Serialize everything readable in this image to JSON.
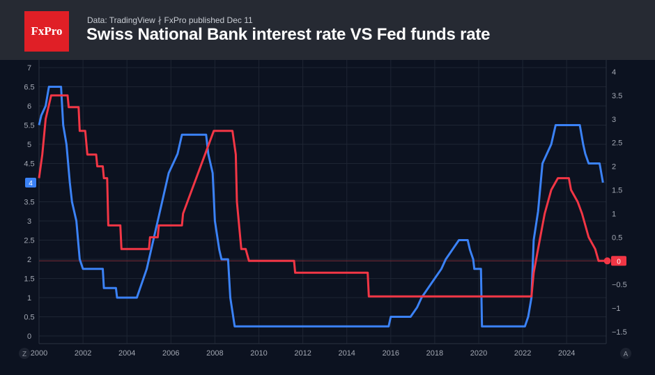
{
  "header": {
    "logo_text": "FxPro",
    "source_text": "Data: TradingView  ∤ FxPro published Dec 11",
    "title": "Swiss National Bank interest rate VS Fed funds rate"
  },
  "footer": {
    "left_btn": "Z",
    "right_btn": "A"
  },
  "colors": {
    "fed": "#3b82f6",
    "snb": "#f23645",
    "background": "#0c1220",
    "header": "#262a33",
    "grid": "#1e2533",
    "axis_text": "#a3a8b3"
  },
  "chart_data": {
    "type": "line",
    "title": "Swiss National Bank interest rate VS Fed funds rate",
    "x_ticks": [
      "2000",
      "2002",
      "2004",
      "2006",
      "2008",
      "2010",
      "2012",
      "2014",
      "2016",
      "2018",
      "2020",
      "2022",
      "2024"
    ],
    "xlim": [
      2000,
      2025.8
    ],
    "y_left": {
      "ticks": [
        "0",
        "0.5",
        "1",
        "1.5",
        "2",
        "2.5",
        "3",
        "3.5",
        "4",
        "4.5",
        "5",
        "5.5",
        "6",
        "6.5",
        "7"
      ],
      "ylim": [
        -0.2,
        7.2
      ],
      "last_value_label": "4"
    },
    "y_right": {
      "ticks": [
        "−1.5",
        "−1",
        "−0.5",
        "0",
        "0.5",
        "1",
        "1.5",
        "2",
        "2.5",
        "3",
        "3.5",
        "4"
      ],
      "ylim": [
        -1.75,
        4.25
      ],
      "last_value_label": "0"
    },
    "grid": true,
    "series": [
      {
        "axis": "left",
        "color": "#3b82f6",
        "points": [
          [
            2000.0,
            5.5
          ],
          [
            2000.1,
            5.75
          ],
          [
            2000.3,
            6.0
          ],
          [
            2000.45,
            6.5
          ],
          [
            2001.0,
            6.5
          ],
          [
            2001.1,
            5.5
          ],
          [
            2001.25,
            5.0
          ],
          [
            2001.4,
            4.0
          ],
          [
            2001.5,
            3.5
          ],
          [
            2001.7,
            3.0
          ],
          [
            2001.85,
            2.0
          ],
          [
            2002.0,
            1.75
          ],
          [
            2002.9,
            1.75
          ],
          [
            2002.95,
            1.25
          ],
          [
            2003.5,
            1.25
          ],
          [
            2003.55,
            1.0
          ],
          [
            2004.45,
            1.0
          ],
          [
            2004.6,
            1.25
          ],
          [
            2004.75,
            1.5
          ],
          [
            2004.9,
            1.75
          ],
          [
            2005.1,
            2.25
          ],
          [
            2005.3,
            2.75
          ],
          [
            2005.5,
            3.25
          ],
          [
            2005.7,
            3.75
          ],
          [
            2005.9,
            4.25
          ],
          [
            2006.1,
            4.5
          ],
          [
            2006.3,
            4.75
          ],
          [
            2006.5,
            5.25
          ],
          [
            2007.6,
            5.25
          ],
          [
            2007.7,
            4.75
          ],
          [
            2007.9,
            4.25
          ],
          [
            2008.0,
            3.0
          ],
          [
            2008.2,
            2.25
          ],
          [
            2008.3,
            2.0
          ],
          [
            2008.6,
            2.0
          ],
          [
            2008.7,
            1.0
          ],
          [
            2008.9,
            0.25
          ],
          [
            2015.9,
            0.25
          ],
          [
            2016.0,
            0.5
          ],
          [
            2016.9,
            0.5
          ],
          [
            2017.2,
            0.75
          ],
          [
            2017.4,
            1.0
          ],
          [
            2017.7,
            1.25
          ],
          [
            2018.0,
            1.5
          ],
          [
            2018.3,
            1.75
          ],
          [
            2018.5,
            2.0
          ],
          [
            2018.8,
            2.25
          ],
          [
            2019.1,
            2.5
          ],
          [
            2019.5,
            2.5
          ],
          [
            2019.6,
            2.25
          ],
          [
            2019.75,
            2.0
          ],
          [
            2019.8,
            1.75
          ],
          [
            2020.1,
            1.75
          ],
          [
            2020.15,
            0.25
          ],
          [
            2022.1,
            0.25
          ],
          [
            2022.25,
            0.5
          ],
          [
            2022.4,
            1.0
          ],
          [
            2022.5,
            2.5
          ],
          [
            2022.7,
            3.25
          ],
          [
            2022.9,
            4.5
          ],
          [
            2023.1,
            4.75
          ],
          [
            2023.3,
            5.0
          ],
          [
            2023.5,
            5.5
          ],
          [
            2024.6,
            5.5
          ],
          [
            2024.75,
            5.0
          ],
          [
            2024.85,
            4.75
          ],
          [
            2025.0,
            4.5
          ],
          [
            2025.5,
            4.5
          ],
          [
            2025.65,
            4.0
          ]
        ]
      },
      {
        "axis": "right",
        "color": "#f23645",
        "points": [
          [
            2000.0,
            1.75
          ],
          [
            2000.15,
            2.25
          ],
          [
            2000.3,
            3.0
          ],
          [
            2000.55,
            3.5
          ],
          [
            2001.3,
            3.5
          ],
          [
            2001.35,
            3.25
          ],
          [
            2001.8,
            3.25
          ],
          [
            2001.85,
            2.75
          ],
          [
            2002.1,
            2.75
          ],
          [
            2002.2,
            2.25
          ],
          [
            2002.6,
            2.25
          ],
          [
            2002.65,
            2.0
          ],
          [
            2002.9,
            2.0
          ],
          [
            2002.95,
            1.75
          ],
          [
            2003.1,
            1.75
          ],
          [
            2003.15,
            0.75
          ],
          [
            2003.7,
            0.75
          ],
          [
            2003.75,
            0.25
          ],
          [
            2005.0,
            0.25
          ],
          [
            2005.05,
            0.5
          ],
          [
            2005.4,
            0.5
          ],
          [
            2005.45,
            0.75
          ],
          [
            2006.5,
            0.75
          ],
          [
            2006.55,
            1.0
          ],
          [
            2006.75,
            1.25
          ],
          [
            2006.95,
            1.5
          ],
          [
            2007.15,
            1.75
          ],
          [
            2007.35,
            2.0
          ],
          [
            2007.55,
            2.25
          ],
          [
            2007.75,
            2.5
          ],
          [
            2007.95,
            2.75
          ],
          [
            2008.8,
            2.75
          ],
          [
            2008.95,
            2.25
          ],
          [
            2009.0,
            1.25
          ],
          [
            2009.2,
            0.25
          ],
          [
            2009.4,
            0.25
          ],
          [
            2009.55,
            0.0
          ],
          [
            2011.6,
            0.0
          ],
          [
            2011.65,
            -0.25
          ],
          [
            2014.95,
            -0.25
          ],
          [
            2015.0,
            -0.75
          ],
          [
            2022.4,
            -0.75
          ],
          [
            2022.5,
            -0.25
          ],
          [
            2022.7,
            0.25
          ],
          [
            2022.9,
            0.75
          ],
          [
            2023.0,
            1.0
          ],
          [
            2023.3,
            1.5
          ],
          [
            2023.6,
            1.75
          ],
          [
            2024.1,
            1.75
          ],
          [
            2024.2,
            1.5
          ],
          [
            2024.5,
            1.25
          ],
          [
            2024.7,
            1.0
          ],
          [
            2025.0,
            0.5
          ],
          [
            2025.3,
            0.25
          ],
          [
            2025.45,
            0.0
          ],
          [
            2025.85,
            0.0
          ]
        ]
      }
    ]
  }
}
